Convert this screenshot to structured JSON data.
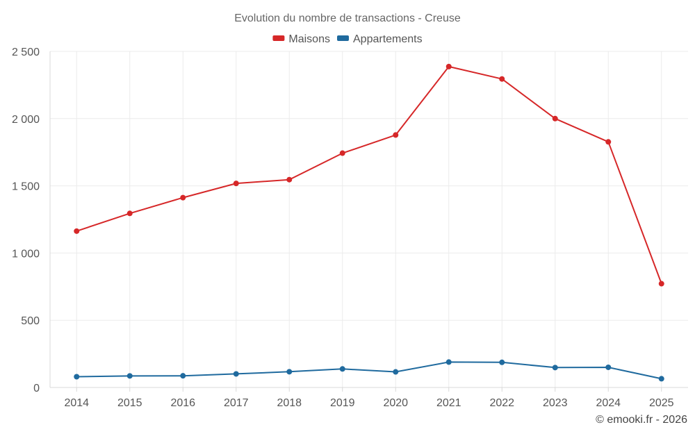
{
  "chart_data": {
    "type": "line",
    "title": "Evolution du nombre de transactions - Creuse",
    "categories": [
      "2014",
      "2015",
      "2016",
      "2017",
      "2018",
      "2019",
      "2020",
      "2021",
      "2022",
      "2023",
      "2024",
      "2025"
    ],
    "series": [
      {
        "name": "Maisons",
        "color": "#d62728",
        "values": [
          1163,
          1295,
          1412,
          1518,
          1546,
          1743,
          1878,
          2387,
          2295,
          2000,
          1827,
          772
        ]
      },
      {
        "name": "Appartements",
        "color": "#1f6a9e",
        "values": [
          80,
          86,
          87,
          101,
          117,
          138,
          116,
          189,
          187,
          148,
          150,
          65
        ]
      }
    ],
    "xlabel": "",
    "ylabel": "",
    "ylim": [
      0,
      2500
    ],
    "yticks": [
      0,
      500,
      1000,
      1500,
      2000,
      2500
    ],
    "ytick_labels": [
      "0",
      "500",
      "1 000",
      "1 500",
      "2 000",
      "2 500"
    ],
    "grid": true,
    "legend_position": "top-center"
  },
  "credit": "© emooki.fr - 2026"
}
